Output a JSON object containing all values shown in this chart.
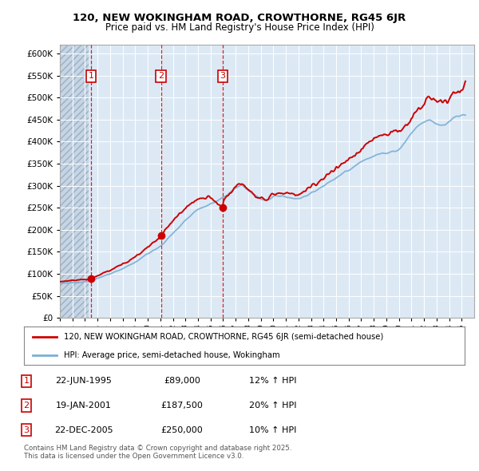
{
  "title1": "120, NEW WOKINGHAM ROAD, CROWTHORNE, RG45 6JR",
  "title2": "Price paid vs. HM Land Registry's House Price Index (HPI)",
  "legend_line1": "120, NEW WOKINGHAM ROAD, CROWTHORNE, RG45 6JR (semi-detached house)",
  "legend_line2": "HPI: Average price, semi-detached house, Wokingham",
  "transactions": [
    {
      "num": 1,
      "date": "22-JUN-1995",
      "price": 89000,
      "hpi_pct": "12% ↑ HPI",
      "x_year": 1995.47
    },
    {
      "num": 2,
      "date": "19-JAN-2001",
      "price": 187500,
      "hpi_pct": "20% ↑ HPI",
      "x_year": 2001.05
    },
    {
      "num": 3,
      "date": "22-DEC-2005",
      "price": 250000,
      "hpi_pct": "10% ↑ HPI",
      "x_year": 2005.97
    }
  ],
  "footer": "Contains HM Land Registry data © Crown copyright and database right 2025.\nThis data is licensed under the Open Government Licence v3.0.",
  "hpi_color": "#7bafd4",
  "price_color": "#cc0000",
  "transaction_color": "#cc0000",
  "bg_color": "#dce9f5",
  "ylim": [
    0,
    620000
  ],
  "xlim_start": 1993,
  "xlim_end": 2026,
  "hatch_end": 1995.3
}
